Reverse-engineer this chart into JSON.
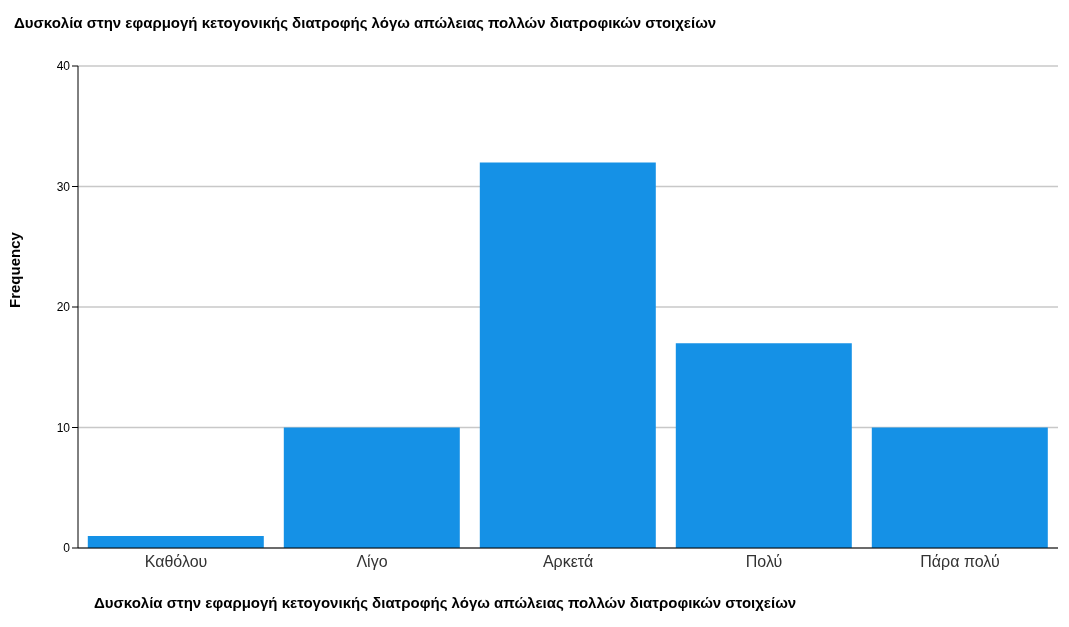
{
  "chart_data": {
    "type": "bar",
    "title": "Δυσκολία στην εφαρμογή κετογονικής διατροφής λόγω απώλειας πολλών διατροφικών στοιχείων",
    "xlabel": "Δυσκολία στην εφαρμογή κετογονικής διατροφής λόγω απώλειας πολλών διατροφικών στοιχείων",
    "ylabel": "Frequency",
    "categories": [
      "Καθόλου",
      "Λίγο",
      "Αρκετά",
      "Πολύ",
      "Πάρα πολύ"
    ],
    "values": [
      1,
      10,
      32,
      17,
      10
    ],
    "color": "#1591e6",
    "ylim": [
      0,
      40
    ],
    "yticks": [
      0,
      10,
      20,
      30,
      40
    ],
    "grid": "y"
  }
}
